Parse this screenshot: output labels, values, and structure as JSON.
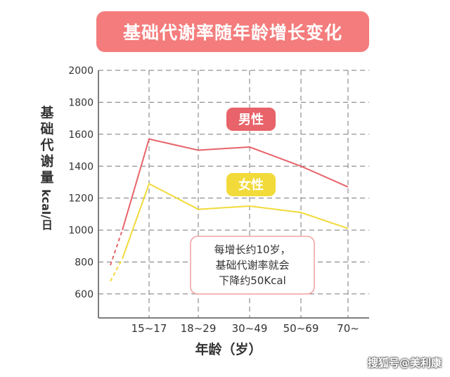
{
  "title": "基础代谢率随年龄增长变化",
  "ylabel": "基础代谢量",
  "yunit": "kcal/日",
  "xlabel": "年龄（岁）",
  "annotation": [
    "每增长约10岁，",
    "基础代谢率就会",
    "下降约50Kcal"
  ],
  "watermark": "搜狐号@美利康",
  "colors": {
    "male": "#e8636a",
    "female": "#f2da3a",
    "title_bg": "#f47c7c",
    "annotation_border": "#f2a0a0"
  },
  "chart_data": {
    "type": "line",
    "categories": [
      "15~17",
      "18~29",
      "30~49",
      "50~69",
      "70~"
    ],
    "series": [
      {
        "name": "男性",
        "color": "#e8636a",
        "values": [
          1570,
          1500,
          1520,
          1400,
          1270
        ],
        "lead_in": [
          780,
          1000
        ]
      },
      {
        "name": "女性",
        "color": "#f2da3a",
        "values": [
          1290,
          1130,
          1150,
          1110,
          1010
        ],
        "lead_in": [
          680,
          820
        ]
      }
    ],
    "yticks": [
      600,
      800,
      1000,
      1200,
      1400,
      1600,
      1800,
      2000
    ],
    "ylim": [
      450,
      2000
    ],
    "grid": true
  }
}
